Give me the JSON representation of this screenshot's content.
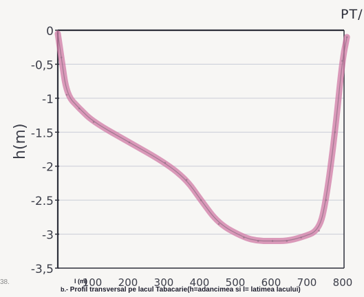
{
  "corner_number": "38.",
  "corner_code": "PT/",
  "caption": {
    "prefix": "b.-",
    "text": "Profil transversal pe lacul Tabacarie(h=adancimea si l= latimea lacului)"
  },
  "chart_data": {
    "type": "line",
    "title": "",
    "xlabel": "l (m)",
    "ylabel": "h(m)",
    "xlim": [
      0,
      800
    ],
    "ylim": [
      -3.5,
      0
    ],
    "x_ticks": [
      0,
      100,
      200,
      300,
      400,
      500,
      600,
      700,
      800
    ],
    "x_tick_labels": [
      "100",
      "200",
      "300",
      "400",
      "500",
      "600",
      "700",
      "800"
    ],
    "y_ticks": [
      0,
      -0.5,
      -1,
      -1.5,
      -2,
      -2.5,
      -3,
      -3.5
    ],
    "y_tick_labels": [
      "0",
      "-0,5",
      "-1",
      "-1.5",
      "-2",
      "-2.5",
      "-3",
      "-3,5"
    ],
    "grid": true,
    "line_color": "#d07aa6",
    "series": [
      {
        "x": [
          0,
          10,
          25,
          60,
          100,
          200,
          300,
          360,
          400,
          450,
          520,
          560,
          600,
          640,
          680,
          730,
          750,
          775,
          795,
          808
        ],
        "y": [
          -0.05,
          -0.4,
          -0.95,
          -1.15,
          -1.35,
          -1.65,
          -1.95,
          -2.2,
          -2.5,
          -2.85,
          -3.05,
          -3.1,
          -3.1,
          -3.1,
          -3.05,
          -2.95,
          -2.5,
          -1.5,
          -0.45,
          -0.1
        ]
      }
    ]
  }
}
